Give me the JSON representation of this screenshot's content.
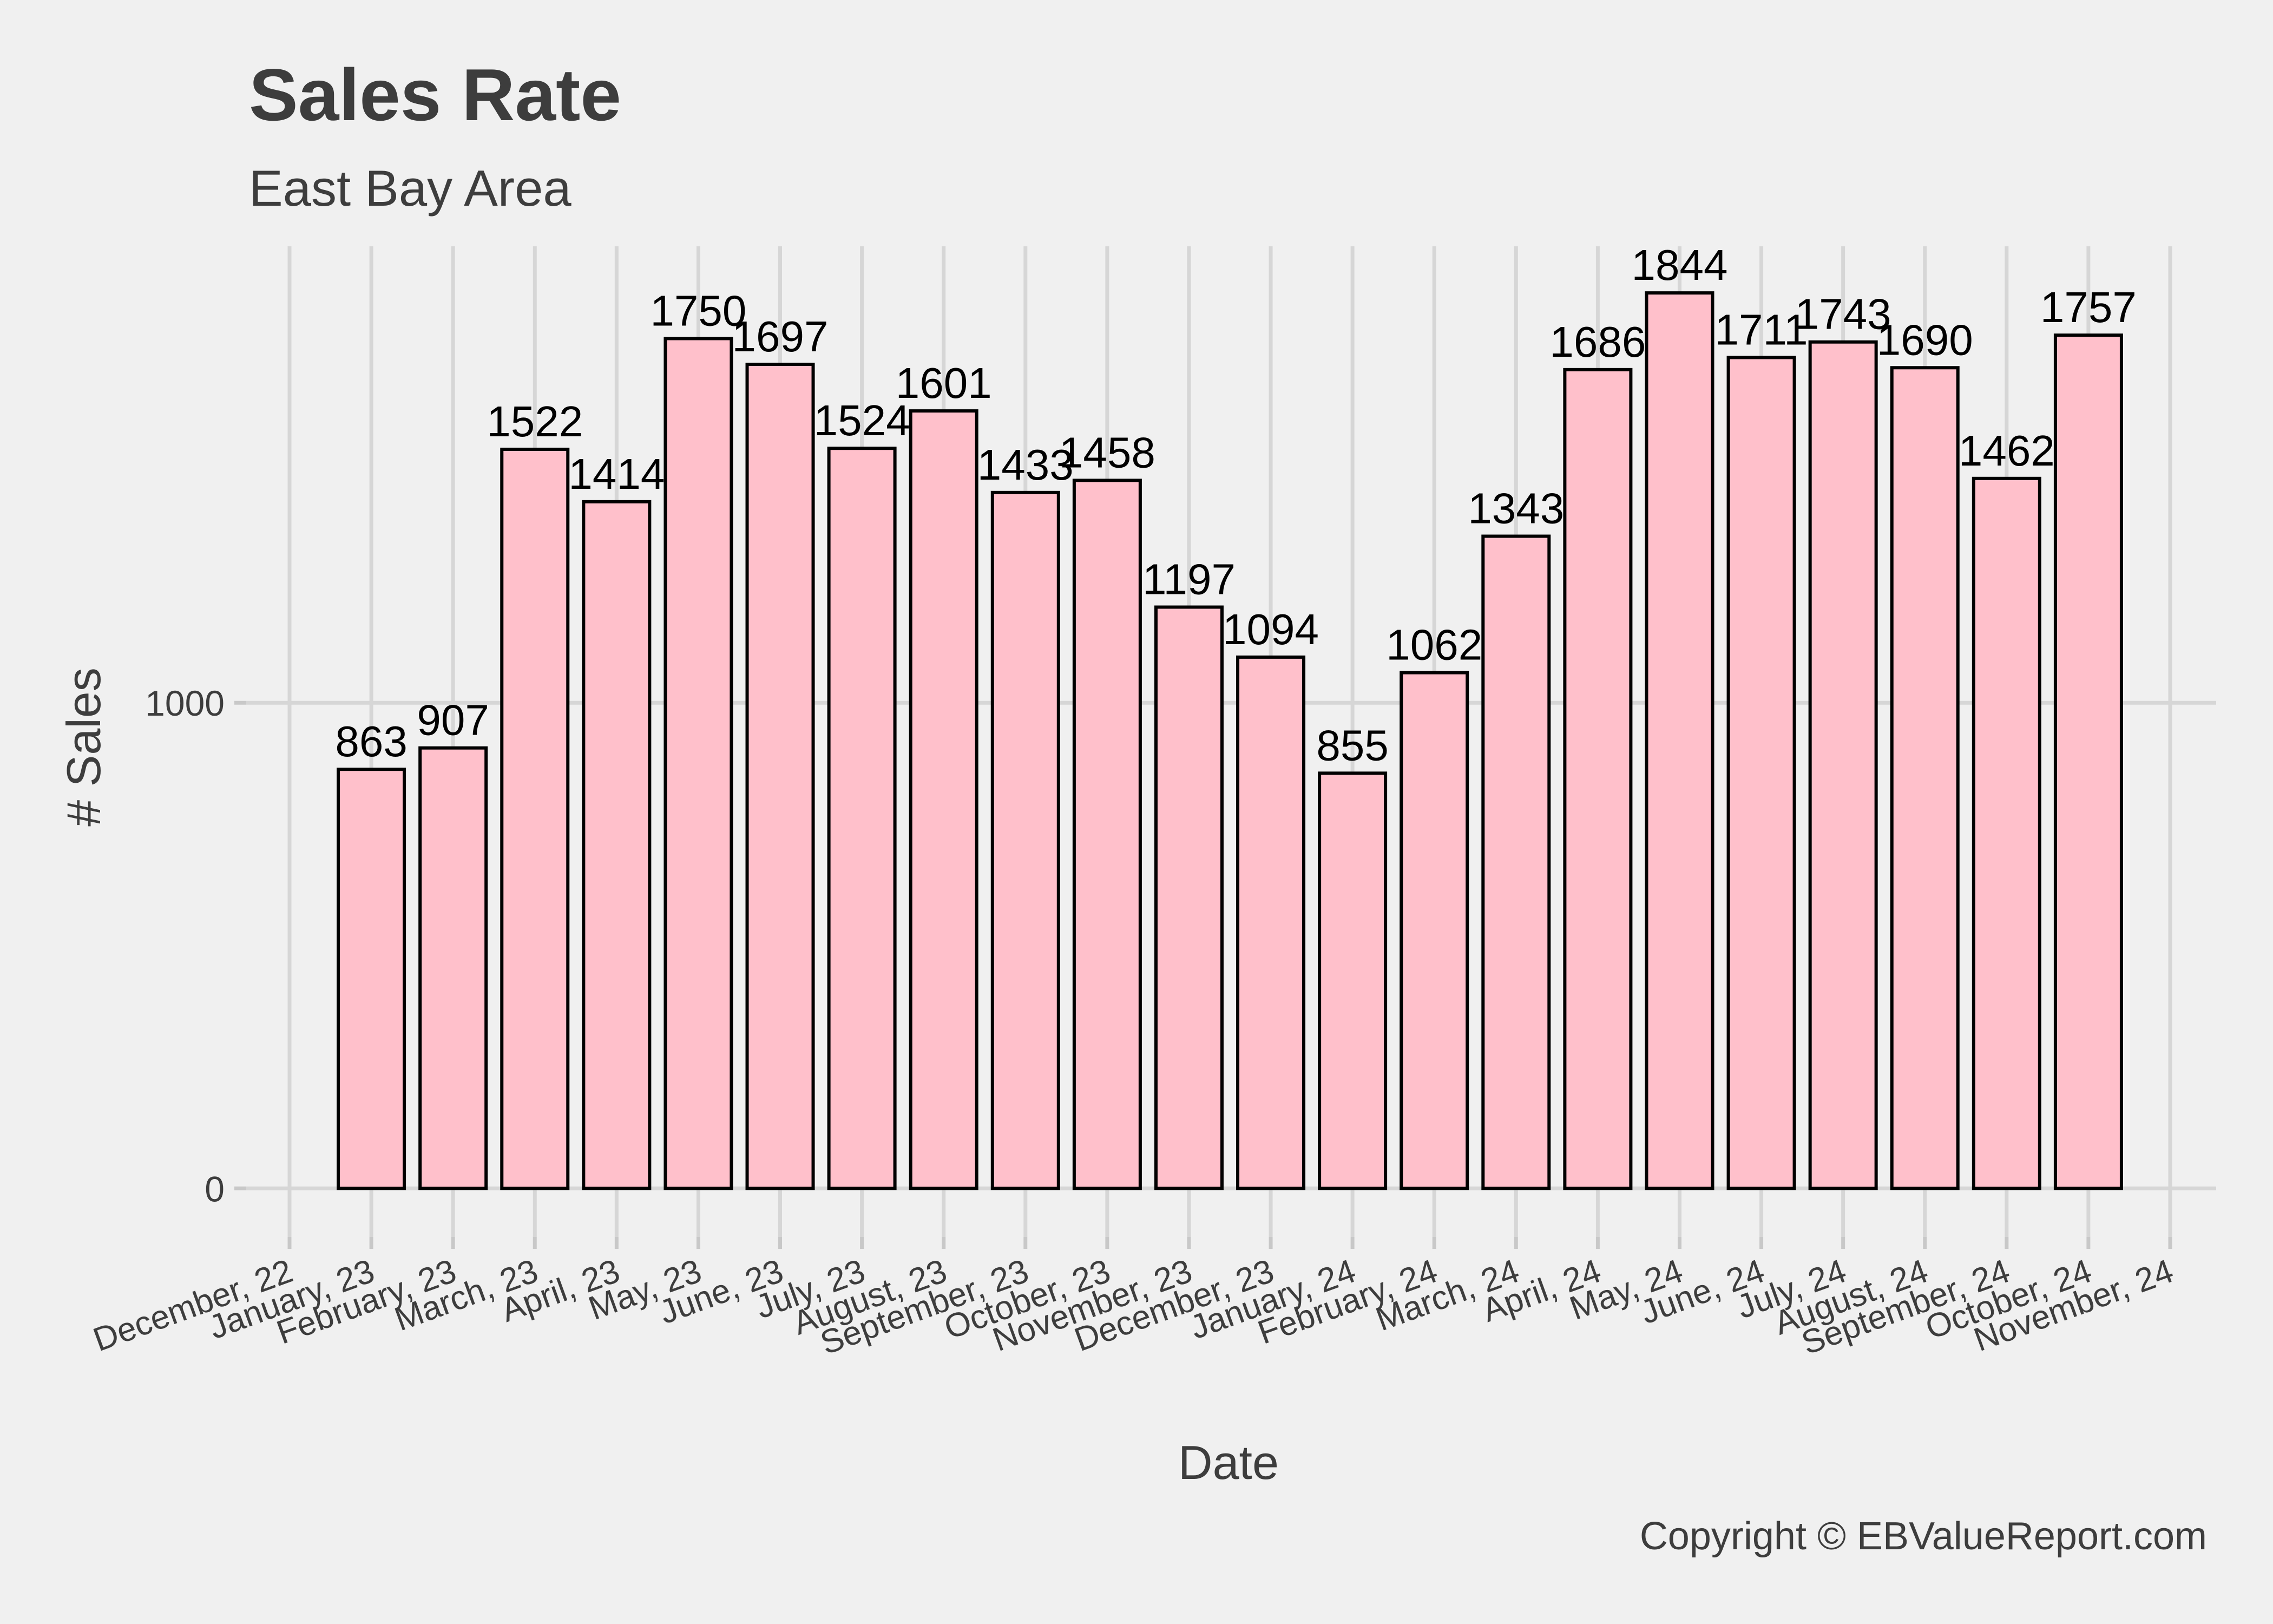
{
  "chart_data": {
    "type": "bar",
    "title": "Sales Rate",
    "subtitle": "East Bay Area",
    "xlabel": "Date",
    "ylabel": "# Sales",
    "caption": "Copyright  © EBValueReport.com",
    "x_ticks": [
      "December, 22",
      "January, 23",
      "February, 23",
      "March, 23",
      "April, 23",
      "May, 23",
      "June, 23",
      "July, 23",
      "August, 23",
      "September, 23",
      "October, 23",
      "November, 23",
      "December, 23",
      "January, 24",
      "February, 24",
      "March, 24",
      "April, 24",
      "May, 24",
      "June, 24",
      "July, 24",
      "August, 24",
      "September, 24",
      "October, 24",
      "November, 24"
    ],
    "x_range": [
      "2022-12-01",
      "2024-11-01"
    ],
    "dates": [
      "2023-01-01",
      "2023-02-01",
      "2023-03-01",
      "2023-04-01",
      "2023-05-01",
      "2023-06-01",
      "2023-07-01",
      "2023-08-01",
      "2023-09-01",
      "2023-10-01",
      "2023-11-01",
      "2023-12-01",
      "2024-01-01",
      "2024-02-01",
      "2024-03-01",
      "2024-04-01",
      "2024-05-01",
      "2024-06-01",
      "2024-07-01",
      "2024-08-01",
      "2024-09-01",
      "2024-10-01"
    ],
    "values": [
      863,
      907,
      1522,
      1414,
      1750,
      1697,
      1524,
      1601,
      1433,
      1458,
      1197,
      1094,
      855,
      1062,
      1343,
      1686,
      1844,
      1711,
      1743,
      1690,
      1462,
      1757
    ],
    "y_ticks": [
      0,
      1000
    ],
    "ylim": [
      -100,
      1940
    ],
    "grid": true,
    "legend": "none",
    "bar_fill": "#ffc0cb",
    "bar_outline": "#000000",
    "background": "#f0f0f0"
  }
}
